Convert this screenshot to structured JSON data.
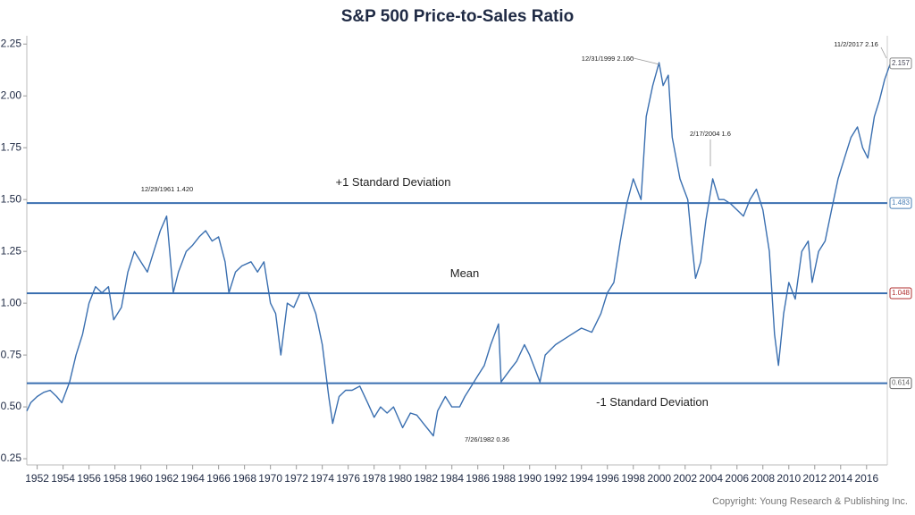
{
  "chart_data": {
    "type": "line",
    "title": "S&P 500 Price-to-Sales Ratio",
    "source": "Copyright: Young Research & Publishing Inc.",
    "color": "#3a6fb0",
    "x": [
      1951.2,
      1951.5,
      1952,
      1952.5,
      1953,
      1953.5,
      1953.9,
      1954.5,
      1955,
      1955.5,
      1956,
      1956.5,
      1957,
      1957.5,
      1957.9,
      1958.5,
      1959,
      1959.5,
      1960,
      1960.5,
      1961,
      1961.5,
      1961.99,
      1962.5,
      1962.9,
      1963.5,
      1964,
      1964.5,
      1965,
      1965.5,
      1966,
      1966.5,
      1966.8,
      1967.3,
      1967.8,
      1968.5,
      1969,
      1969.5,
      1970,
      1970.4,
      1970.8,
      1971.3,
      1971.8,
      1972.3,
      1972.9,
      1973.5,
      1974,
      1974.5,
      1974.8,
      1975.3,
      1975.8,
      1976.3,
      1976.9,
      1977.5,
      1978,
      1978.5,
      1979,
      1979.5,
      1980.2,
      1980.8,
      1981.3,
      1981.8,
      1982.57,
      1982.9,
      1983.5,
      1984,
      1984.6,
      1985,
      1985.5,
      1986,
      1986.5,
      1987,
      1987.6,
      1987.8,
      1988.5,
      1989,
      1989.6,
      1990,
      1990.8,
      1991.2,
      1992,
      1993,
      1994,
      1994.8,
      1995.5,
      1996,
      1996.5,
      1997,
      1997.5,
      1998,
      1998.6,
      1999,
      1999.5,
      1999.99,
      2000.3,
      2000.7,
      2001,
      2001.6,
      2001.9,
      2002.2,
      2002.5,
      2002.8,
      2003.2,
      2003.6,
      2004.13,
      2004.6,
      2005,
      2005.5,
      2006,
      2006.5,
      2007,
      2007.5,
      2008,
      2008.5,
      2008.9,
      2009.2,
      2009.6,
      2010,
      2010.5,
      2011,
      2011.5,
      2011.8,
      2012.3,
      2012.8,
      2013.3,
      2013.8,
      2014.3,
      2014.8,
      2015.3,
      2015.7,
      2016.1,
      2016.6,
      2017,
      2017.4,
      2017.84
    ],
    "values": [
      0.48,
      0.52,
      0.55,
      0.57,
      0.58,
      0.55,
      0.52,
      0.62,
      0.75,
      0.85,
      1.0,
      1.08,
      1.05,
      1.08,
      0.92,
      0.98,
      1.15,
      1.25,
      1.2,
      1.15,
      1.25,
      1.35,
      1.42,
      1.05,
      1.15,
      1.25,
      1.28,
      1.32,
      1.35,
      1.3,
      1.32,
      1.2,
      1.05,
      1.15,
      1.18,
      1.2,
      1.15,
      1.2,
      1.0,
      0.95,
      0.75,
      1.0,
      0.98,
      1.05,
      1.05,
      0.95,
      0.8,
      0.55,
      0.42,
      0.55,
      0.58,
      0.58,
      0.6,
      0.52,
      0.45,
      0.5,
      0.47,
      0.5,
      0.4,
      0.47,
      0.46,
      0.42,
      0.36,
      0.48,
      0.55,
      0.5,
      0.5,
      0.55,
      0.6,
      0.65,
      0.7,
      0.8,
      0.9,
      0.62,
      0.68,
      0.72,
      0.8,
      0.75,
      0.62,
      0.75,
      0.8,
      0.84,
      0.88,
      0.86,
      0.95,
      1.05,
      1.1,
      1.3,
      1.48,
      1.6,
      1.5,
      1.9,
      2.05,
      2.16,
      2.05,
      2.1,
      1.8,
      1.6,
      1.55,
      1.5,
      1.3,
      1.12,
      1.2,
      1.4,
      1.6,
      1.5,
      1.5,
      1.48,
      1.45,
      1.42,
      1.5,
      1.55,
      1.45,
      1.25,
      0.85,
      0.7,
      0.95,
      1.1,
      1.02,
      1.25,
      1.3,
      1.1,
      1.25,
      1.3,
      1.45,
      1.6,
      1.7,
      1.8,
      1.85,
      1.75,
      1.7,
      1.9,
      1.98,
      2.08,
      2.157
    ],
    "xlim": [
      1951.2,
      2017.6
    ],
    "ylim": [
      0.22,
      2.29
    ],
    "xticks": [
      1952,
      1954,
      1956,
      1958,
      1960,
      1962,
      1964,
      1966,
      1968,
      1970,
      1972,
      1974,
      1976,
      1978,
      1980,
      1982,
      1984,
      1986,
      1988,
      1990,
      1992,
      1994,
      1996,
      1998,
      2000,
      2002,
      2004,
      2006,
      2008,
      2010,
      2012,
      2014,
      2016
    ],
    "yticks": [
      0.25,
      {
        "value": 0.5,
        "label": "0.50"
      },
      0.75,
      {
        "value": 1,
        "label": "1.00"
      },
      1.25,
      {
        "value": 1.5,
        "label": "1.50"
      },
      1.75,
      {
        "value": 2,
        "label": "2.00"
      },
      2.25
    ],
    "reference_lines": [
      {
        "label": "+1 Standard Deviation",
        "value": 1.483,
        "color": "#4a7fb5"
      },
      {
        "label": "Mean",
        "value": 1.048,
        "color": "#b03030"
      },
      {
        "label": "-1 Standard Deviation",
        "value": 0.614,
        "color": "#666666"
      }
    ],
    "annotations": [
      "12/29/1961 1.420",
      "12/31/1999 2.160",
      "2/17/2004 1.6",
      "11/2/2017 2.16",
      "7/26/1982 0.36"
    ]
  }
}
